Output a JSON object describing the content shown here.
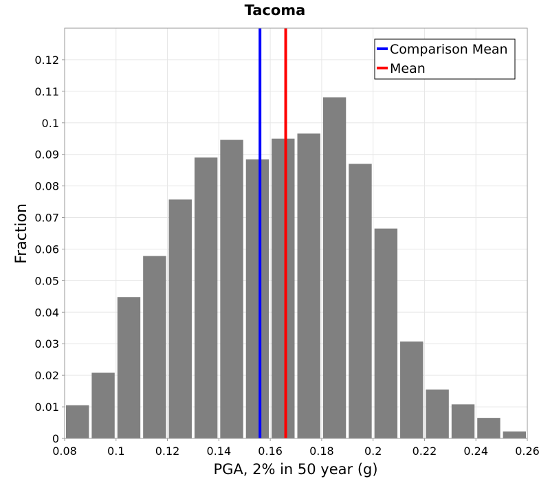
{
  "chart_data": {
    "type": "bar",
    "title": "Tacoma",
    "xlabel": "PGA, 2% in 50 year (g)",
    "ylabel": "Fraction",
    "xlim": [
      0.08,
      0.26
    ],
    "ylim": [
      0,
      0.13
    ],
    "xticks": [
      0.08,
      0.1,
      0.12,
      0.14,
      0.16,
      0.18,
      0.2,
      0.22,
      0.24,
      0.26
    ],
    "xtick_labels": [
      "0.08",
      "0.1",
      "0.12",
      "0.14",
      "0.16",
      "0.18",
      "0.2",
      "0.22",
      "0.24",
      "0.26"
    ],
    "yticks": [
      0,
      0.01,
      0.02,
      0.03,
      0.04,
      0.05,
      0.06,
      0.07,
      0.08,
      0.09,
      0.1,
      0.11,
      0.12
    ],
    "ytick_labels": [
      "0",
      "0.01",
      "0.02",
      "0.03",
      "0.04",
      "0.05",
      "0.06",
      "0.07",
      "0.08",
      "0.09",
      "0.1",
      "0.11",
      "0.12"
    ],
    "bin_width": 0.01,
    "bins": [
      {
        "x": 0.08,
        "value": 0.0105
      },
      {
        "x": 0.09,
        "value": 0.0208
      },
      {
        "x": 0.1,
        "value": 0.0448
      },
      {
        "x": 0.11,
        "value": 0.0578
      },
      {
        "x": 0.12,
        "value": 0.0757
      },
      {
        "x": 0.13,
        "value": 0.089
      },
      {
        "x": 0.14,
        "value": 0.0946
      },
      {
        "x": 0.15,
        "value": 0.0884
      },
      {
        "x": 0.16,
        "value": 0.095
      },
      {
        "x": 0.17,
        "value": 0.0966
      },
      {
        "x": 0.18,
        "value": 0.1081
      },
      {
        "x": 0.19,
        "value": 0.087
      },
      {
        "x": 0.2,
        "value": 0.0665
      },
      {
        "x": 0.21,
        "value": 0.0307
      },
      {
        "x": 0.22,
        "value": 0.0155
      },
      {
        "x": 0.23,
        "value": 0.0108
      },
      {
        "x": 0.24,
        "value": 0.0065
      },
      {
        "x": 0.25,
        "value": 0.0022
      }
    ],
    "bar_color": "#808080",
    "vlines": [
      {
        "name": "Comparison Mean",
        "x": 0.156,
        "color": "#0000ff"
      },
      {
        "name": "Mean",
        "x": 0.166,
        "color": "#ff0000"
      }
    ],
    "grid": true,
    "legend_position": "top-right"
  }
}
